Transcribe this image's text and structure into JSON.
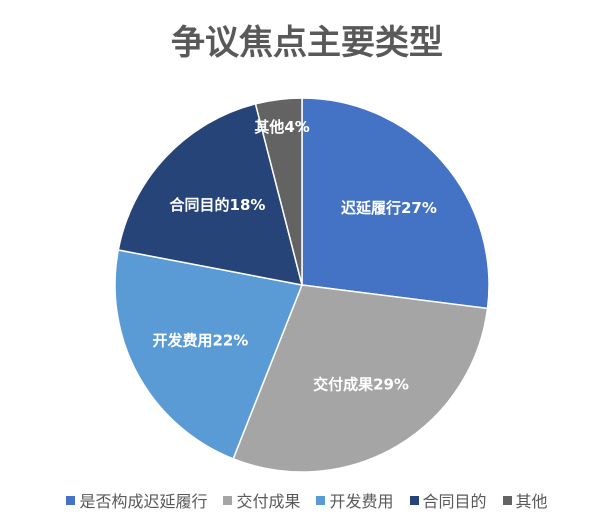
{
  "chart_data": {
    "type": "pie",
    "title": "争议焦点主要类型",
    "categories": [
      "是否构成迟延履行",
      "交付成果",
      "开发费用",
      "合同目的",
      "其他"
    ],
    "values": [
      27,
      29,
      22,
      18,
      4
    ],
    "value_labels": [
      "迟延履行27%",
      "交付成果29%",
      "开发费用22%",
      "合同目的18%",
      "其他4%"
    ],
    "colors": [
      "#4472c4",
      "#a5a5a5",
      "#5b9bd5",
      "#264478",
      "#636363"
    ],
    "legend": "bottom"
  }
}
